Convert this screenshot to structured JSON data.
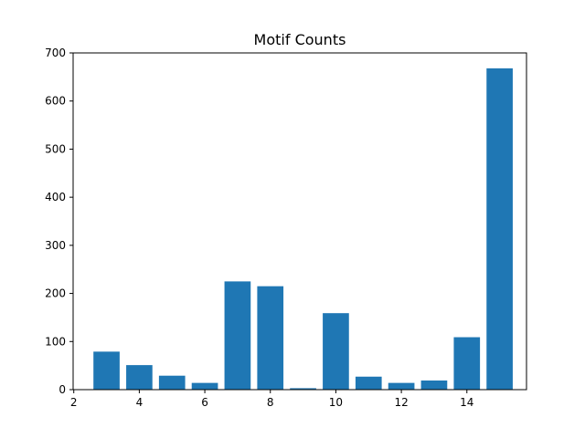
{
  "chart_data": {
    "type": "bar",
    "title": "Motif Counts",
    "xlabel": "",
    "ylabel": "",
    "x": [
      3,
      4,
      5,
      6,
      7,
      8,
      9,
      10,
      11,
      12,
      13,
      14,
      15
    ],
    "values": [
      79,
      51,
      29,
      14,
      225,
      215,
      3,
      159,
      27,
      14,
      19,
      109,
      668
    ],
    "bar_width": 0.8,
    "xlim": [
      1.98,
      15.82
    ],
    "ylim": [
      0,
      700
    ],
    "xticks": [
      2,
      4,
      6,
      8,
      10,
      12,
      14,
      16
    ],
    "yticks": [
      0,
      100,
      200,
      300,
      400,
      500,
      600,
      700
    ],
    "bar_color": "#1f77b4",
    "grid": false,
    "legend": "none"
  }
}
